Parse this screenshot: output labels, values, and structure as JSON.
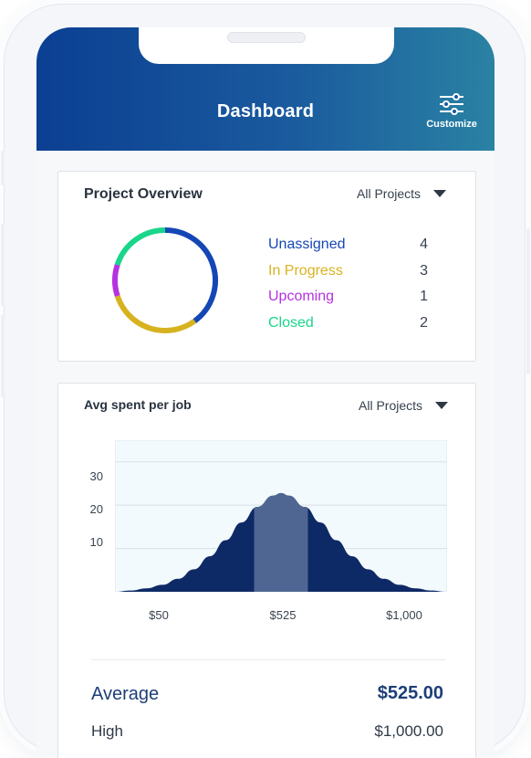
{
  "header": {
    "title": "Dashboard",
    "customize_label": "Customize",
    "customize_icon": "sliders-icon",
    "gradient": [
      "#0b3f92",
      "#2a82a3"
    ]
  },
  "project_overview": {
    "title": "Project Overview",
    "filter": "All Projects",
    "statuses": [
      {
        "label": "Unassigned",
        "count": 4,
        "color": "#1546b5"
      },
      {
        "label": "In Progress",
        "count": 3,
        "color": "#d7b21f"
      },
      {
        "label": "Upcoming",
        "count": 1,
        "color": "#b632e0"
      },
      {
        "label": "Closed",
        "count": 2,
        "color": "#19d68a"
      }
    ]
  },
  "avg_spent": {
    "title": "Avg spent per job",
    "filter": "All Projects",
    "summary": [
      {
        "label": "Average",
        "value": "$525.00"
      },
      {
        "label": "High",
        "value": "$1,000.00"
      }
    ]
  },
  "chart_data": {
    "type": "area",
    "title": "Avg spent per job",
    "x_ticks": [
      "$50",
      "$525",
      "$1,000"
    ],
    "y_ticks": [
      10,
      20,
      30
    ],
    "x": [
      0,
      50,
      100,
      150,
      200,
      250,
      300,
      350,
      400,
      450,
      500,
      525,
      550,
      600,
      650,
      700,
      750,
      800,
      850,
      900,
      950,
      1000,
      1050
    ],
    "y": [
      0.0,
      0.3,
      0.8,
      1.6,
      3.0,
      5.2,
      8.2,
      11.9,
      16.0,
      19.6,
      22.2,
      22.8,
      22.2,
      19.6,
      16.0,
      11.9,
      8.2,
      5.2,
      3.0,
      1.6,
      0.8,
      0.3,
      0.0
    ],
    "xlim": [
      0,
      1050
    ],
    "ylim": [
      0,
      35
    ],
    "highlight_range": [
      440,
      610
    ],
    "fill_color": "#0e2a66",
    "highlight_color": "#4f6692",
    "plot_background": "#f3fafd",
    "grid": true
  }
}
